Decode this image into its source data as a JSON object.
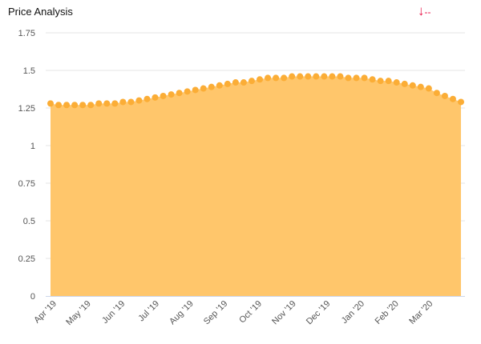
{
  "header": {
    "title": "Price Analysis",
    "trend_icon": "arrow-down-icon",
    "trend_value": "--",
    "trend_color": "#e8174b"
  },
  "chart_data": {
    "type": "area",
    "title": "Price Analysis",
    "xlabel": "",
    "ylabel": "",
    "ylim": [
      0,
      1.75
    ],
    "yticks": [
      "0",
      "0.25",
      "0.5",
      "0.75",
      "1",
      "1.25",
      "1.5",
      "1.75"
    ],
    "ytick_values": [
      0,
      0.25,
      0.5,
      0.75,
      1,
      1.25,
      1.5,
      1.75
    ],
    "xtick_labels": [
      "Apr '19",
      "May '19",
      "Jun '19",
      "Jul '19",
      "Aug '19",
      "Sep '19",
      "Oct '19",
      "Nov '19",
      "Dec '19",
      "Jan '20",
      "Feb '20",
      "Mar '20"
    ],
    "grid": true,
    "fill_color": "#ffc66b",
    "marker_color": "#fbad36",
    "values": [
      1.28,
      1.27,
      1.27,
      1.27,
      1.27,
      1.27,
      1.28,
      1.28,
      1.28,
      1.29,
      1.29,
      1.3,
      1.31,
      1.32,
      1.33,
      1.34,
      1.35,
      1.36,
      1.37,
      1.38,
      1.39,
      1.4,
      1.41,
      1.42,
      1.42,
      1.43,
      1.44,
      1.45,
      1.45,
      1.45,
      1.46,
      1.46,
      1.46,
      1.46,
      1.46,
      1.46,
      1.46,
      1.45,
      1.45,
      1.45,
      1.44,
      1.43,
      1.43,
      1.42,
      1.41,
      1.4,
      1.39,
      1.38,
      1.35,
      1.33,
      1.31,
      1.29
    ]
  }
}
